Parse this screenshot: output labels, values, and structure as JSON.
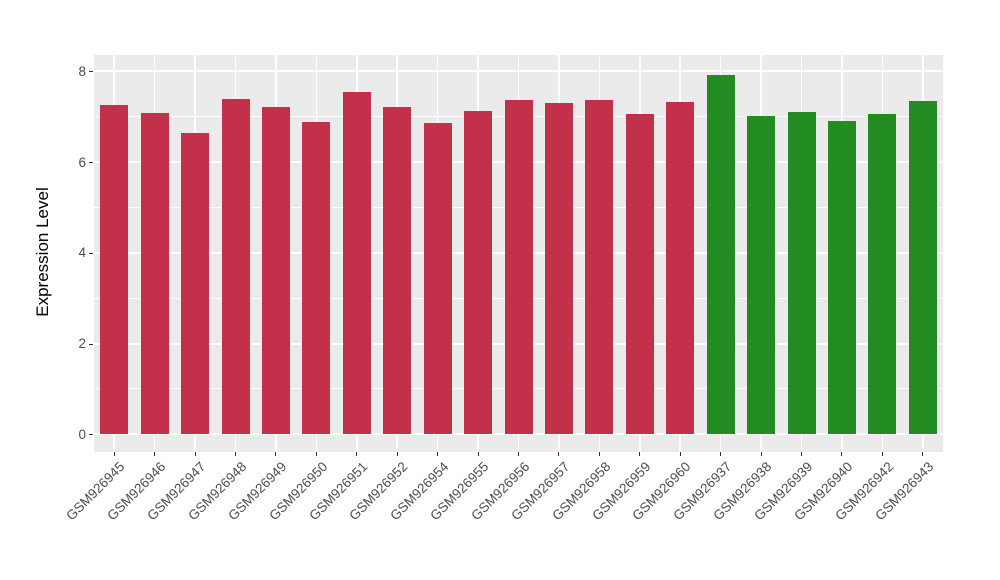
{
  "chart_data": {
    "type": "bar",
    "title": "",
    "xlabel": "",
    "ylabel": "Expression Level",
    "ylim": [
      0,
      8.4
    ],
    "yticks_major": [
      0,
      2,
      4,
      6,
      8
    ],
    "yticks_minor": [
      1,
      3,
      5,
      7
    ],
    "grid": "white major and minor horizontal lines, white vertical line at each bar center, on gray panel",
    "legend_position": "none",
    "panel_background": "#EBEBEB",
    "gridline_color": "#FFFFFF",
    "axis_text_color": "#4D4D4D",
    "tick_mark_color": "#333333",
    "group_colors": {
      "red": "#C23149",
      "green": "#228B22"
    },
    "bars": [
      {
        "label": "GSM926945",
        "value": 7.25,
        "group": "red"
      },
      {
        "label": "GSM926946",
        "value": 7.08,
        "group": "red"
      },
      {
        "label": "GSM926947",
        "value": 6.65,
        "group": "red"
      },
      {
        "label": "GSM926948",
        "value": 7.39,
        "group": "red"
      },
      {
        "label": "GSM926949",
        "value": 7.21,
        "group": "red"
      },
      {
        "label": "GSM926950",
        "value": 6.88,
        "group": "red"
      },
      {
        "label": "GSM926951",
        "value": 7.55,
        "group": "red"
      },
      {
        "label": "GSM926952",
        "value": 7.21,
        "group": "red"
      },
      {
        "label": "GSM926954",
        "value": 6.86,
        "group": "red"
      },
      {
        "label": "GSM926955",
        "value": 7.13,
        "group": "red"
      },
      {
        "label": "GSM926956",
        "value": 7.36,
        "group": "red"
      },
      {
        "label": "GSM926957",
        "value": 7.3,
        "group": "red"
      },
      {
        "label": "GSM926958",
        "value": 7.37,
        "group": "red"
      },
      {
        "label": "GSM926959",
        "value": 7.05,
        "group": "red"
      },
      {
        "label": "GSM926960",
        "value": 7.33,
        "group": "red"
      },
      {
        "label": "GSM926937",
        "value": 7.92,
        "group": "green"
      },
      {
        "label": "GSM926938",
        "value": 7.02,
        "group": "green"
      },
      {
        "label": "GSM926939",
        "value": 7.1,
        "group": "green"
      },
      {
        "label": "GSM926940",
        "value": 6.91,
        "group": "green"
      },
      {
        "label": "GSM926942",
        "value": 7.06,
        "group": "green"
      },
      {
        "label": "GSM926943",
        "value": 7.35,
        "group": "green"
      }
    ]
  }
}
